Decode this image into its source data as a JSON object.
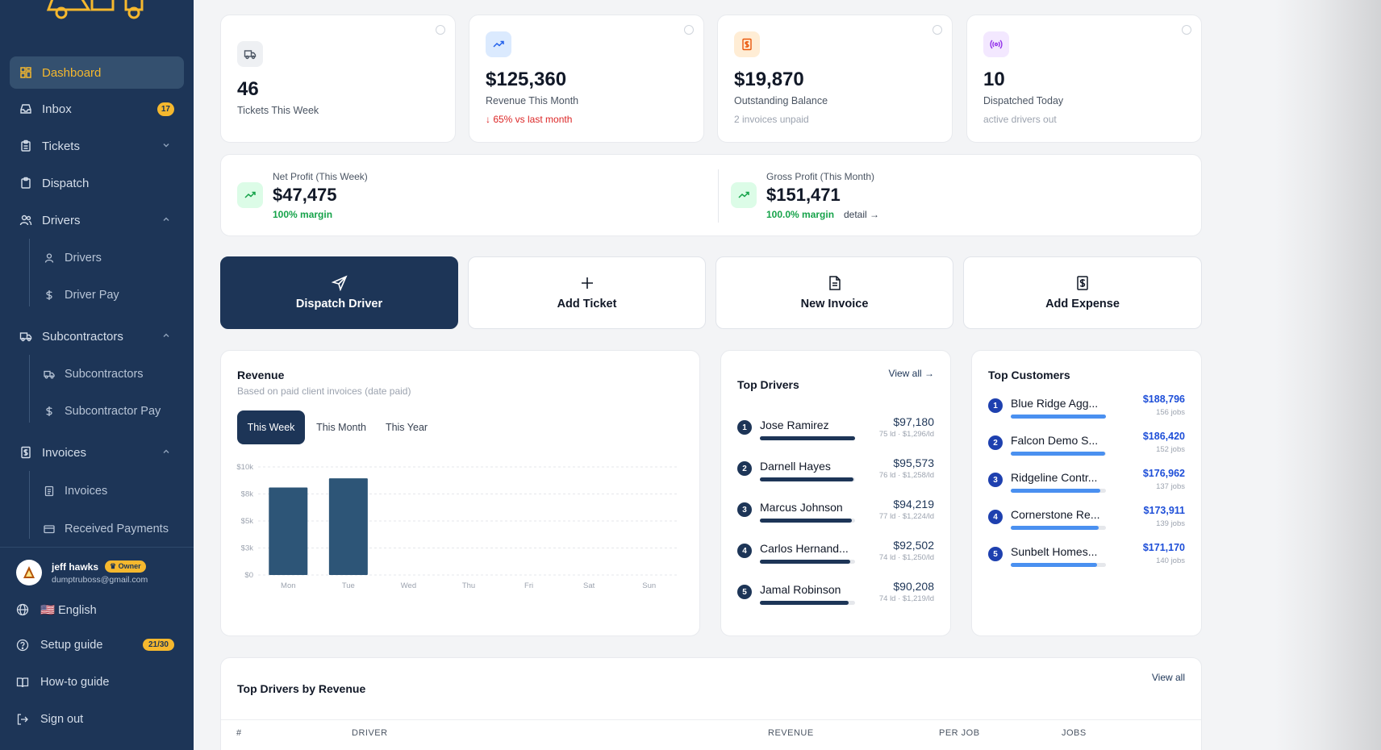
{
  "sidebar": {
    "nav": [
      {
        "label": "Dashboard",
        "icon": "grid-icon",
        "active": true
      },
      {
        "label": "Inbox",
        "icon": "inbox-icon",
        "badge": "17"
      },
      {
        "label": "Tickets",
        "icon": "clipboard-icon"
      },
      {
        "label": "Dispatch",
        "icon": "clipboard-list-icon"
      },
      {
        "label": "Drivers",
        "icon": "users-icon"
      },
      {
        "label": "Subcontractors",
        "icon": "truck-icon"
      },
      {
        "label": "Invoices",
        "icon": "invoice-icon"
      }
    ],
    "sub": {
      "drivers": [
        "Drivers",
        "Driver Pay"
      ],
      "subcontractors": [
        "Subcontractors",
        "Subcontractor Pay"
      ],
      "invoices": [
        "Invoices",
        "Received Payments"
      ]
    },
    "user": {
      "name": "jeff hawks",
      "role": "Owner",
      "email": "dumptruboss@gmail.com"
    },
    "footer": {
      "language": "🇺🇸 English",
      "setup": "Setup guide",
      "setup_progress": "21/30",
      "howto": "How-to guide",
      "signout": "Sign out"
    }
  },
  "stats": [
    {
      "value": "46",
      "label": "Tickets This Week",
      "sub": "",
      "icon": "truck-icon",
      "color": "#eef0f3"
    },
    {
      "value": "$125,360",
      "label": "Revenue This Month",
      "sub": "↓ 65% vs last month",
      "icon": "trend-up-icon",
      "color": "#dbeafe"
    },
    {
      "value": "$19,870",
      "label": "Outstanding Balance",
      "sub": "2 invoices unpaid",
      "icon": "invoice-icon",
      "color": "#ffedd5"
    },
    {
      "value": "10",
      "label": "Dispatched Today",
      "sub": "active drivers out",
      "icon": "radio-icon",
      "color": "#f3e8ff"
    }
  ],
  "profit": {
    "net": {
      "label": "Net Profit (This Week)",
      "value": "$47,475",
      "margin": "100% margin"
    },
    "gross": {
      "label": "Gross Profit (This Month)",
      "value": "$151,471",
      "margin": "100.0% margin",
      "detail": "detail →"
    }
  },
  "actions": [
    {
      "label": "Dispatch Driver",
      "icon": "send-icon"
    },
    {
      "label": "Add Ticket",
      "icon": "plus-icon"
    },
    {
      "label": "New Invoice",
      "icon": "file-icon"
    },
    {
      "label": "Add Expense",
      "icon": "receipt-icon"
    }
  ],
  "revenue": {
    "title": "Revenue",
    "subtitle": "Based on paid client invoices (date paid)",
    "tabs": [
      "This Week",
      "This Month",
      "This Year"
    ]
  },
  "chart_data": {
    "type": "bar",
    "categories": [
      "Mon",
      "Tue",
      "Wed",
      "Thu",
      "Fri",
      "Sat",
      "Sun"
    ],
    "values": [
      8100,
      8950,
      0,
      0,
      0,
      0,
      0
    ],
    "yticks": [
      "$10k",
      "$8k",
      "$5k",
      "$3k",
      "$0"
    ],
    "ylim": [
      0,
      10000
    ],
    "grid": true,
    "color": "#2d5577"
  },
  "top_drivers": {
    "title": "Top Drivers",
    "view_all": "View all →",
    "rows": [
      {
        "rank": "1",
        "name": "Jose Ramirez",
        "amount": "$97,180",
        "meta": "75 ld · $1,296/ld",
        "pct": 1.0
      },
      {
        "rank": "2",
        "name": "Darnell Hayes",
        "amount": "$95,573",
        "meta": "76 ld · $1,258/ld",
        "pct": 0.98
      },
      {
        "rank": "3",
        "name": "Marcus Johnson",
        "amount": "$94,219",
        "meta": "77 ld · $1,224/ld",
        "pct": 0.97
      },
      {
        "rank": "4",
        "name": "Carlos Hernand...",
        "amount": "$92,502",
        "meta": "74 ld · $1,250/ld",
        "pct": 0.95
      },
      {
        "rank": "5",
        "name": "Jamal Robinson",
        "amount": "$90,208",
        "meta": "74 ld · $1,219/ld",
        "pct": 0.93
      }
    ]
  },
  "top_customers": {
    "title": "Top Customers",
    "rows": [
      {
        "rank": "1",
        "name": "Blue Ridge Agg...",
        "amount": "$188,796",
        "meta": "156 jobs",
        "pct": 1.0
      },
      {
        "rank": "2",
        "name": "Falcon Demo S...",
        "amount": "$186,420",
        "meta": "152 jobs",
        "pct": 0.99
      },
      {
        "rank": "3",
        "name": "Ridgeline Contr...",
        "amount": "$176,962",
        "meta": "137 jobs",
        "pct": 0.94
      },
      {
        "rank": "4",
        "name": "Cornerstone Re...",
        "amount": "$173,911",
        "meta": "139 jobs",
        "pct": 0.92
      },
      {
        "rank": "5",
        "name": "Sunbelt Homes...",
        "amount": "$171,170",
        "meta": "140 jobs",
        "pct": 0.91
      }
    ]
  },
  "table": {
    "title": "Top Drivers by Revenue",
    "view_all": "View all",
    "columns": [
      "#",
      "DRIVER",
      "REVENUE",
      "PER JOB",
      "JOBS"
    ]
  }
}
